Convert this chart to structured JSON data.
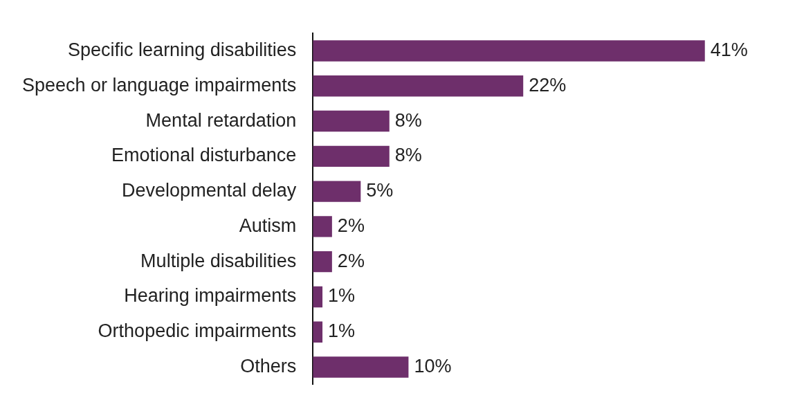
{
  "chart_data": {
    "type": "bar",
    "orientation": "horizontal",
    "categories": [
      "Specific learning disabilities",
      "Speech or language impairments",
      "Mental retardation",
      "Emotional disturbance",
      "Developmental delay",
      "Autism",
      "Multiple disabilities",
      "Hearing impairments",
      "Orthopedic impairments",
      "Others"
    ],
    "values": [
      41,
      22,
      8,
      8,
      5,
      2,
      2,
      1,
      1,
      10
    ],
    "value_labels": [
      "41%",
      "22%",
      "8%",
      "8%",
      "5%",
      "2%",
      "2%",
      "1%",
      "1%",
      "10%"
    ],
    "color": "#6e2f6b",
    "grid": false,
    "legend": false
  }
}
